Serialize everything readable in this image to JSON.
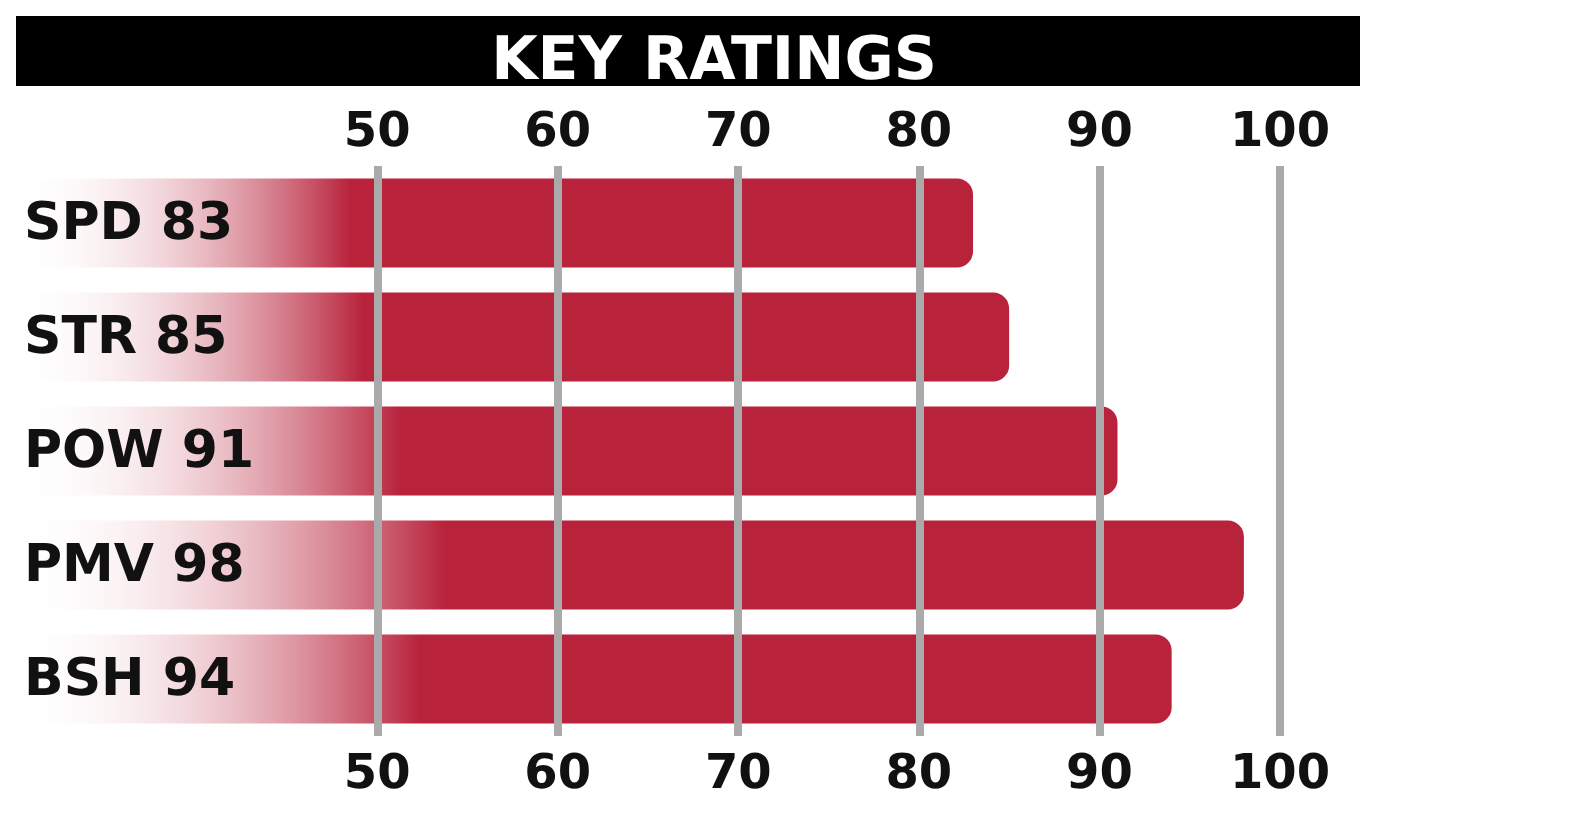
{
  "chart_data": {
    "type": "bar",
    "orientation": "horizontal",
    "title": "KEY RATINGS",
    "categories": [
      "SPD 83",
      "STR 85",
      "POW 91",
      "PMV 98",
      "BSH 94"
    ],
    "values": [
      83,
      85,
      91,
      98,
      94
    ],
    "color": "#b8223b",
    "xlim": [
      30,
      100
    ],
    "xticks": [
      50,
      60,
      70,
      80,
      90,
      100
    ],
    "x2lim": [
      30,
      100
    ],
    "x2ticks": [
      50,
      60,
      70,
      80,
      90,
      100
    ],
    "grid": "x"
  }
}
